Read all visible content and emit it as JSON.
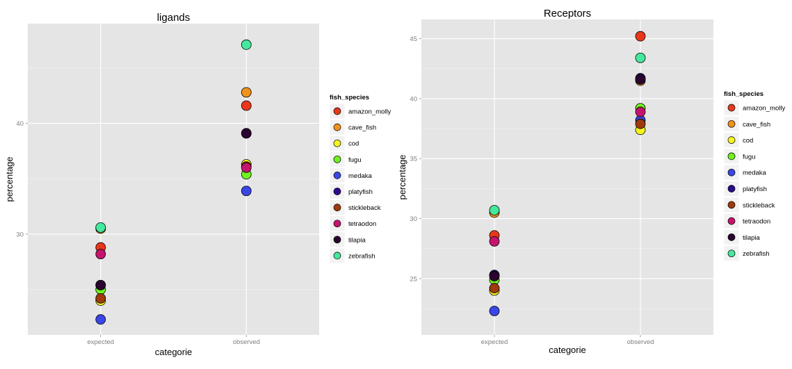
{
  "legend_title": "fish_species",
  "species": [
    {
      "name": "amazon_molly",
      "color": "#e8381c"
    },
    {
      "name": "cave_fish",
      "color": "#f0921c"
    },
    {
      "name": "cod",
      "color": "#f5f51e"
    },
    {
      "name": "fugu",
      "color": "#6ff21e"
    },
    {
      "name": "medaka",
      "color": "#3a46e6"
    },
    {
      "name": "platyfish",
      "color": "#2c0a8e"
    },
    {
      "name": "stickleback",
      "color": "#9e3a0c"
    },
    {
      "name": "tetraodon",
      "color": "#c4156e"
    },
    {
      "name": "tilapia",
      "color": "#2a0530"
    },
    {
      "name": "zebrafish",
      "color": "#45e89c"
    }
  ],
  "chart_data": [
    {
      "type": "scatter",
      "title": "ligands",
      "xlabel": "categorie",
      "ylabel": "percentage",
      "categories": [
        "expected",
        "observed"
      ],
      "ylim": [
        20.9,
        49.0
      ],
      "yticks": [
        30,
        40
      ],
      "grid": true,
      "legend": "right",
      "series": [
        {
          "name": "amazon_molly",
          "values": [
            28.8,
            41.6
          ]
        },
        {
          "name": "cave_fish",
          "values": [
            30.5,
            42.8
          ]
        },
        {
          "name": "cod",
          "values": [
            24.0,
            36.3
          ]
        },
        {
          "name": "fugu",
          "values": [
            25.0,
            35.4
          ]
        },
        {
          "name": "medaka",
          "values": [
            22.3,
            33.9
          ]
        },
        {
          "name": "platyfish",
          "values": [
            25.4,
            39.1
          ]
        },
        {
          "name": "stickleback",
          "values": [
            24.2,
            36.1
          ]
        },
        {
          "name": "tetraodon",
          "values": [
            28.2,
            36.0
          ]
        },
        {
          "name": "tilapia",
          "values": [
            25.4,
            39.1
          ]
        },
        {
          "name": "zebrafish",
          "values": [
            30.6,
            47.1
          ]
        }
      ]
    },
    {
      "type": "scatter",
      "title": "Receptors",
      "xlabel": "categorie",
      "ylabel": "percentage",
      "categories": [
        "expected",
        "observed"
      ],
      "ylim": [
        20.3,
        46.6
      ],
      "yticks": [
        25,
        30,
        35,
        40,
        45
      ],
      "grid": true,
      "legend": "right",
      "series": [
        {
          "name": "amazon_molly",
          "values": [
            28.6,
            45.2
          ]
        },
        {
          "name": "cave_fish",
          "values": [
            30.5,
            41.5
          ]
        },
        {
          "name": "cod",
          "values": [
            24.0,
            37.4
          ]
        },
        {
          "name": "fugu",
          "values": [
            24.9,
            39.2
          ]
        },
        {
          "name": "medaka",
          "values": [
            22.3,
            38.2
          ]
        },
        {
          "name": "platyfish",
          "values": [
            25.3,
            41.7
          ]
        },
        {
          "name": "stickleback",
          "values": [
            24.2,
            37.9
          ]
        },
        {
          "name": "tetraodon",
          "values": [
            28.1,
            38.9
          ]
        },
        {
          "name": "tilapia",
          "values": [
            25.2,
            41.6
          ]
        },
        {
          "name": "zebrafish",
          "values": [
            30.7,
            43.4
          ]
        }
      ]
    }
  ]
}
